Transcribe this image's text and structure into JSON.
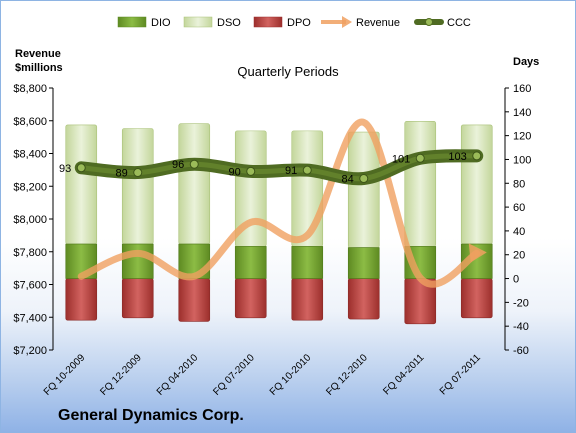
{
  "chart_data": {
    "type": "bar",
    "title": "Quarterly Periods",
    "company": "General Dynamics Corp.",
    "categories": [
      "FQ 10-2009",
      "FQ 12-2009",
      "FQ 04-2010",
      "FQ 07-2010",
      "FQ 10-2010",
      "FQ 12-2010",
      "FQ 04-2011",
      "FQ 07-2011"
    ],
    "left_axis": {
      "label_line1": "Revenue",
      "label_line2": "$millions",
      "ylim": [
        7200,
        8800
      ],
      "ticks": [
        "$7,200",
        "$7,400",
        "$7,600",
        "$7,800",
        "$8,000",
        "$8,200",
        "$8,400",
        "$8,600",
        "$8,800"
      ]
    },
    "right_axis": {
      "label": "Days",
      "ylim": [
        -60,
        160
      ],
      "ticks": [
        "-60",
        "-40",
        "-20",
        "0",
        "20",
        "40",
        "60",
        "80",
        "100",
        "120",
        "140",
        "160"
      ]
    },
    "series": [
      {
        "name": "DIO",
        "axis": "right",
        "kind": "stacked-bar",
        "color": "#77a033",
        "values": [
          29,
          29,
          29,
          27,
          27,
          26,
          27,
          29
        ]
      },
      {
        "name": "DSO",
        "axis": "right",
        "kind": "stacked-bar",
        "color": "#d7e4bd",
        "values": [
          100,
          97,
          101,
          97,
          97,
          97,
          105,
          100
        ]
      },
      {
        "name": "DPO",
        "axis": "right",
        "kind": "bar-negative",
        "color": "#c0504d",
        "values": [
          -35,
          -33,
          -36,
          -33,
          -35,
          -34,
          -38,
          -33
        ]
      },
      {
        "name": "Revenue",
        "axis": "left",
        "kind": "line",
        "color": "#f0a060",
        "values": [
          7650,
          7790,
          7650,
          7980,
          7900,
          8590,
          7640,
          7790
        ]
      },
      {
        "name": "CCC",
        "axis": "right",
        "kind": "line",
        "color": "#5a7a26",
        "values": [
          93,
          89,
          96,
          90,
          91,
          84,
          101,
          103
        ]
      }
    ],
    "data_labels": [
      "93",
      "89",
      "96",
      "90",
      "91",
      "84",
      "101",
      "103"
    ],
    "legend": "top",
    "grid": false
  }
}
